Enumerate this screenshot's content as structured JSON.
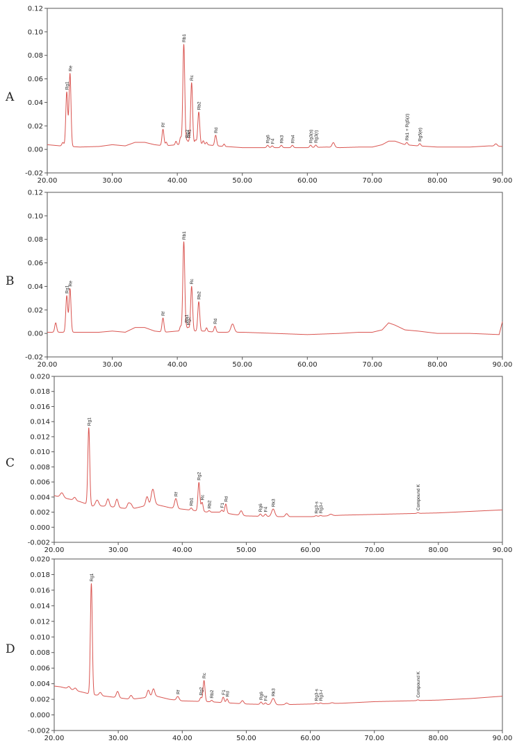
{
  "chart_data": [
    {
      "panel": "A",
      "type": "line",
      "ylim": [
        -0.02,
        0.12
      ],
      "xlim": [
        20,
        90
      ],
      "y_ticks": [
        "-0.02",
        "0.00",
        "0.02",
        "0.04",
        "0.06",
        "0.08",
        "0.10",
        "0.12"
      ],
      "x_ticks": [
        "20.00",
        "30.00",
        "40.00",
        "50.00",
        "60.00",
        "70.00",
        "80.00",
        "90.00"
      ],
      "baseline": [
        [
          20,
          0.004
        ],
        [
          22,
          0.003
        ],
        [
          25,
          0.002
        ],
        [
          28,
          0.0025
        ],
        [
          30,
          0.004
        ],
        [
          32,
          0.003
        ],
        [
          33.5,
          0.006
        ],
        [
          35,
          0.006
        ],
        [
          36.5,
          0.004
        ],
        [
          38,
          0.003
        ],
        [
          40,
          0.004
        ],
        [
          43,
          0.005
        ],
        [
          46,
          0.003
        ],
        [
          50,
          0.0015
        ],
        [
          55,
          0.0015
        ],
        [
          60,
          0.0015
        ],
        [
          63,
          0.002
        ],
        [
          65,
          0.0015
        ],
        [
          68,
          0.002
        ],
        [
          70,
          0.002
        ],
        [
          71.5,
          0.004
        ],
        [
          72.5,
          0.007
        ],
        [
          73.5,
          0.007
        ],
        [
          75,
          0.004
        ],
        [
          77,
          0.003
        ],
        [
          80,
          0.002
        ],
        [
          85,
          0.002
        ],
        [
          88,
          0.003
        ],
        [
          90,
          0.0025
        ]
      ],
      "peaks": [
        {
          "x": 22.4,
          "h": 0.003,
          "w": 0.15
        },
        {
          "x": 23.0,
          "h": 0.046,
          "w": 0.15,
          "label": "Rg1"
        },
        {
          "x": 23.5,
          "h": 0.062,
          "w": 0.15,
          "label": "Re"
        },
        {
          "x": 37.8,
          "h": 0.014,
          "w": 0.15,
          "label": "Rf"
        },
        {
          "x": 38.3,
          "h": 0.003,
          "w": 0.12
        },
        {
          "x": 39.8,
          "h": 0.003,
          "w": 0.12
        },
        {
          "x": 40.5,
          "h": 0.006,
          "w": 0.12
        },
        {
          "x": 41.0,
          "h": 0.085,
          "w": 0.15,
          "label": "Rb1"
        },
        {
          "x": 41.5,
          "h": 0.003,
          "w": 0.12,
          "label": "Rg2"
        },
        {
          "x": 41.8,
          "h": 0.002,
          "w": 0.12,
          "label": "Rh1"
        },
        {
          "x": 42.2,
          "h": 0.052,
          "w": 0.15,
          "label": "Rc"
        },
        {
          "x": 42.8,
          "h": 0.003,
          "w": 0.12
        },
        {
          "x": 43.3,
          "h": 0.027,
          "w": 0.15,
          "label": "Rb2"
        },
        {
          "x": 44.0,
          "h": 0.003,
          "w": 0.12
        },
        {
          "x": 44.5,
          "h": 0.002,
          "w": 0.12
        },
        {
          "x": 45.9,
          "h": 0.009,
          "w": 0.15,
          "label": "Rd"
        },
        {
          "x": 47.2,
          "h": 0.002,
          "w": 0.12
        },
        {
          "x": 53.9,
          "h": 0.002,
          "w": 0.15,
          "label": "Rg6"
        },
        {
          "x": 54.6,
          "h": 0.0015,
          "w": 0.15,
          "label": "F4"
        },
        {
          "x": 56.0,
          "h": 0.002,
          "w": 0.15,
          "label": "Rk3"
        },
        {
          "x": 57.7,
          "h": 0.002,
          "w": 0.15,
          "label": "Rh4"
        },
        {
          "x": 60.5,
          "h": 0.002,
          "w": 0.15,
          "label": "Rg3(s)"
        },
        {
          "x": 61.3,
          "h": 0.002,
          "w": 0.15,
          "label": "Rg3(r)"
        },
        {
          "x": 64.0,
          "h": 0.004,
          "w": 0.2
        },
        {
          "x": 75.3,
          "h": 0.002,
          "w": 0.15,
          "label": "Rk1 + Rg5(z)"
        },
        {
          "x": 77.3,
          "h": 0.002,
          "w": 0.15,
          "label": "Rg5(e)"
        },
        {
          "x": 89.0,
          "h": 0.002,
          "w": 0.2
        }
      ]
    },
    {
      "panel": "B",
      "type": "line",
      "ylim": [
        -0.02,
        0.12
      ],
      "xlim": [
        20,
        90
      ],
      "y_ticks": [
        "-0.02",
        "0.00",
        "0.02",
        "0.04",
        "0.06",
        "0.08",
        "0.10",
        "0.12"
      ],
      "x_ticks": [
        "20.00",
        "30.00",
        "40.00",
        "50.00",
        "60.00",
        "70.00",
        "80.00",
        "90.00"
      ],
      "baseline": [
        [
          20,
          0.001
        ],
        [
          22,
          0.001
        ],
        [
          25,
          0.001
        ],
        [
          28,
          0.001
        ],
        [
          30,
          0.002
        ],
        [
          32,
          0.001
        ],
        [
          33.5,
          0.005
        ],
        [
          35,
          0.005
        ],
        [
          36.5,
          0.002
        ],
        [
          38,
          0.001
        ],
        [
          40,
          0.002
        ],
        [
          44,
          0.002
        ],
        [
          46,
          0.001
        ],
        [
          50,
          0.001
        ],
        [
          55,
          0.0
        ],
        [
          60,
          -0.001
        ],
        [
          65,
          0.0
        ],
        [
          68,
          0.001
        ],
        [
          70,
          0.001
        ],
        [
          71.5,
          0.003
        ],
        [
          72.5,
          0.009
        ],
        [
          73.5,
          0.007
        ],
        [
          75,
          0.003
        ],
        [
          77,
          0.002
        ],
        [
          80,
          0.0
        ],
        [
          85,
          0.0
        ],
        [
          89.5,
          -0.001
        ],
        [
          90,
          0.01
        ]
      ],
      "peaks": [
        {
          "x": 21.3,
          "h": 0.008,
          "w": 0.15
        },
        {
          "x": 23.0,
          "h": 0.031,
          "w": 0.15,
          "label": "Rg1"
        },
        {
          "x": 23.5,
          "h": 0.037,
          "w": 0.15,
          "label": "Re"
        },
        {
          "x": 37.8,
          "h": 0.012,
          "w": 0.15,
          "label": "Rf"
        },
        {
          "x": 40.5,
          "h": 0.004,
          "w": 0.12
        },
        {
          "x": 41.0,
          "h": 0.076,
          "w": 0.15,
          "label": "Rb1"
        },
        {
          "x": 41.4,
          "h": 0.003,
          "w": 0.12,
          "label": "Rh1"
        },
        {
          "x": 41.7,
          "h": 0.003,
          "w": 0.12,
          "label": "Rg2"
        },
        {
          "x": 42.2,
          "h": 0.038,
          "w": 0.15,
          "label": "Rc"
        },
        {
          "x": 43.3,
          "h": 0.025,
          "w": 0.15,
          "label": "Rb2"
        },
        {
          "x": 44.5,
          "h": 0.003,
          "w": 0.12
        },
        {
          "x": 45.8,
          "h": 0.005,
          "w": 0.15,
          "label": "Rd"
        },
        {
          "x": 48.5,
          "h": 0.007,
          "w": 0.25
        }
      ]
    },
    {
      "panel": "C",
      "type": "line",
      "ylim": [
        -0.002,
        0.02
      ],
      "xlim": [
        20,
        90
      ],
      "y_ticks": [
        "-0.002",
        "0.000",
        "0.002",
        "0.004",
        "0.006",
        "0.008",
        "0.010",
        "0.012",
        "0.014",
        "0.016",
        "0.018",
        "0.020"
      ],
      "x_ticks": [
        "20.00",
        "30.00",
        "40.00",
        "50.00",
        "60.00",
        "70.00",
        "80.00",
        "90.00"
      ],
      "baseline": [
        [
          20,
          0.0042
        ],
        [
          21,
          0.004
        ],
        [
          22,
          0.0038
        ],
        [
          24,
          0.0034
        ],
        [
          26,
          0.0028
        ],
        [
          28,
          0.0028
        ],
        [
          30,
          0.0026
        ],
        [
          32,
          0.0024
        ],
        [
          34,
          0.0028
        ],
        [
          36,
          0.003
        ],
        [
          38,
          0.0026
        ],
        [
          40,
          0.0024
        ],
        [
          42,
          0.0022
        ],
        [
          44,
          0.002
        ],
        [
          46,
          0.002
        ],
        [
          48,
          0.0017
        ],
        [
          50,
          0.0015
        ],
        [
          55,
          0.0014
        ],
        [
          60,
          0.0014
        ],
        [
          65,
          0.0016
        ],
        [
          70,
          0.0017
        ],
        [
          75,
          0.0018
        ],
        [
          80,
          0.0019
        ],
        [
          85,
          0.0021
        ],
        [
          90,
          0.0023
        ]
      ],
      "peaks": [
        {
          "x": 21.2,
          "h": 0.0006,
          "w": 0.25
        },
        {
          "x": 23.2,
          "h": 0.0004,
          "w": 0.2
        },
        {
          "x": 25.4,
          "h": 0.0102,
          "w": 0.15,
          "label": "Rg1"
        },
        {
          "x": 26.7,
          "h": 0.0008,
          "w": 0.25
        },
        {
          "x": 28.4,
          "h": 0.001,
          "w": 0.2
        },
        {
          "x": 29.8,
          "h": 0.0011,
          "w": 0.2
        },
        {
          "x": 31.6,
          "h": 0.0007,
          "w": 0.2
        },
        {
          "x": 32.0,
          "h": 0.0006,
          "w": 0.2
        },
        {
          "x": 34.5,
          "h": 0.0012,
          "w": 0.2
        },
        {
          "x": 35.4,
          "h": 0.0021,
          "w": 0.25
        },
        {
          "x": 39.0,
          "h": 0.0013,
          "w": 0.2,
          "label": "Rf"
        },
        {
          "x": 41.4,
          "h": 0.0003,
          "w": 0.15,
          "label": "Rb1"
        },
        {
          "x": 42.6,
          "h": 0.0038,
          "w": 0.15,
          "label": "Rg2"
        },
        {
          "x": 43.1,
          "h": 0.0012,
          "w": 0.15,
          "label": "Rc"
        },
        {
          "x": 44.2,
          "h": 0.0002,
          "w": 0.15,
          "label": "Rb2"
        },
        {
          "x": 46.2,
          "h": 0.0003,
          "w": 0.15,
          "label": "F1"
        },
        {
          "x": 46.8,
          "h": 0.0012,
          "w": 0.15,
          "label": "Rd"
        },
        {
          "x": 49.2,
          "h": 0.0006,
          "w": 0.2
        },
        {
          "x": 52.2,
          "h": 0.0003,
          "w": 0.15,
          "label": "Rg6"
        },
        {
          "x": 53.0,
          "h": 0.0003,
          "w": 0.15,
          "label": "F4"
        },
        {
          "x": 54.2,
          "h": 0.001,
          "w": 0.25,
          "label": "Rk3"
        },
        {
          "x": 56.3,
          "h": 0.0004,
          "w": 0.2
        },
        {
          "x": 60.9,
          "h": 0.0001,
          "w": 0.15,
          "label": "Rg3-s"
        },
        {
          "x": 61.6,
          "h": 0.0001,
          "w": 0.15,
          "label": "Rg3-r"
        },
        {
          "x": 63.2,
          "h": 0.0002,
          "w": 0.25
        },
        {
          "x": 76.8,
          "h": 0.0001,
          "w": 0.15,
          "label": "Compound K"
        }
      ]
    },
    {
      "panel": "D",
      "type": "line",
      "ylim": [
        -0.002,
        0.02
      ],
      "xlim": [
        20,
        90
      ],
      "y_ticks": [
        "-0.002",
        "0.000",
        "0.002",
        "0.004",
        "0.006",
        "0.008",
        "0.010",
        "0.012",
        "0.014",
        "0.016",
        "0.018",
        "0.020"
      ],
      "x_ticks": [
        "20.00",
        "30.00",
        "40.00",
        "50.00",
        "60.00",
        "70.00",
        "80.00",
        "90.00"
      ],
      "baseline": [
        [
          20,
          0.0037
        ],
        [
          21,
          0.0036
        ],
        [
          22,
          0.0034
        ],
        [
          24,
          0.003
        ],
        [
          26,
          0.0026
        ],
        [
          28,
          0.0024
        ],
        [
          30,
          0.0022
        ],
        [
          32,
          0.002
        ],
        [
          34,
          0.0022
        ],
        [
          36,
          0.0024
        ],
        [
          38,
          0.002
        ],
        [
          40,
          0.0018
        ],
        [
          44,
          0.0017
        ],
        [
          48,
          0.0015
        ],
        [
          50,
          0.0014
        ],
        [
          55,
          0.0013
        ],
        [
          60,
          0.0014
        ],
        [
          65,
          0.0015
        ],
        [
          70,
          0.0017
        ],
        [
          75,
          0.0018
        ],
        [
          80,
          0.0019
        ],
        [
          85,
          0.0021
        ],
        [
          90,
          0.0024
        ]
      ],
      "peaks": [
        {
          "x": 22.3,
          "h": 0.0003,
          "w": 0.2
        },
        {
          "x": 23.3,
          "h": 0.0003,
          "w": 0.2
        },
        {
          "x": 25.8,
          "h": 0.0142,
          "w": 0.15,
          "label": "Rg1"
        },
        {
          "x": 27.2,
          "h": 0.0004,
          "w": 0.2
        },
        {
          "x": 29.9,
          "h": 0.0008,
          "w": 0.2
        },
        {
          "x": 32.0,
          "h": 0.0005,
          "w": 0.2
        },
        {
          "x": 34.7,
          "h": 0.0009,
          "w": 0.2
        },
        {
          "x": 35.5,
          "h": 0.001,
          "w": 0.2
        },
        {
          "x": 39.3,
          "h": 0.0005,
          "w": 0.2,
          "label": "Rf"
        },
        {
          "x": 42.9,
          "h": 0.0005,
          "w": 0.15,
          "label": "Rg2"
        },
        {
          "x": 43.4,
          "h": 0.0027,
          "w": 0.15,
          "label": "Rc"
        },
        {
          "x": 44.6,
          "h": 0.0002,
          "w": 0.15,
          "label": "Rb2"
        },
        {
          "x": 46.4,
          "h": 0.0007,
          "w": 0.15,
          "label": "F1"
        },
        {
          "x": 47.0,
          "h": 0.0005,
          "w": 0.15,
          "label": "Rd"
        },
        {
          "x": 49.4,
          "h": 0.0004,
          "w": 0.2
        },
        {
          "x": 52.3,
          "h": 0.0003,
          "w": 0.15,
          "label": "Rg6"
        },
        {
          "x": 53.0,
          "h": 0.0002,
          "w": 0.15,
          "label": "F4"
        },
        {
          "x": 54.2,
          "h": 0.0008,
          "w": 0.25,
          "label": "Rk3"
        },
        {
          "x": 56.3,
          "h": 0.0002,
          "w": 0.2
        },
        {
          "x": 60.9,
          "h": 0.0001,
          "w": 0.15,
          "label": "Rg3-s"
        },
        {
          "x": 61.6,
          "h": 0.0001,
          "w": 0.15,
          "label": "Rg3-r"
        },
        {
          "x": 63.4,
          "h": 0.0001,
          "w": 0.2
        },
        {
          "x": 76.8,
          "h": 0.0001,
          "w": 0.15,
          "label": "Compound K"
        }
      ]
    }
  ],
  "colors": {
    "trace": "#d9534f",
    "frame": "#555555",
    "text": "#222222"
  }
}
